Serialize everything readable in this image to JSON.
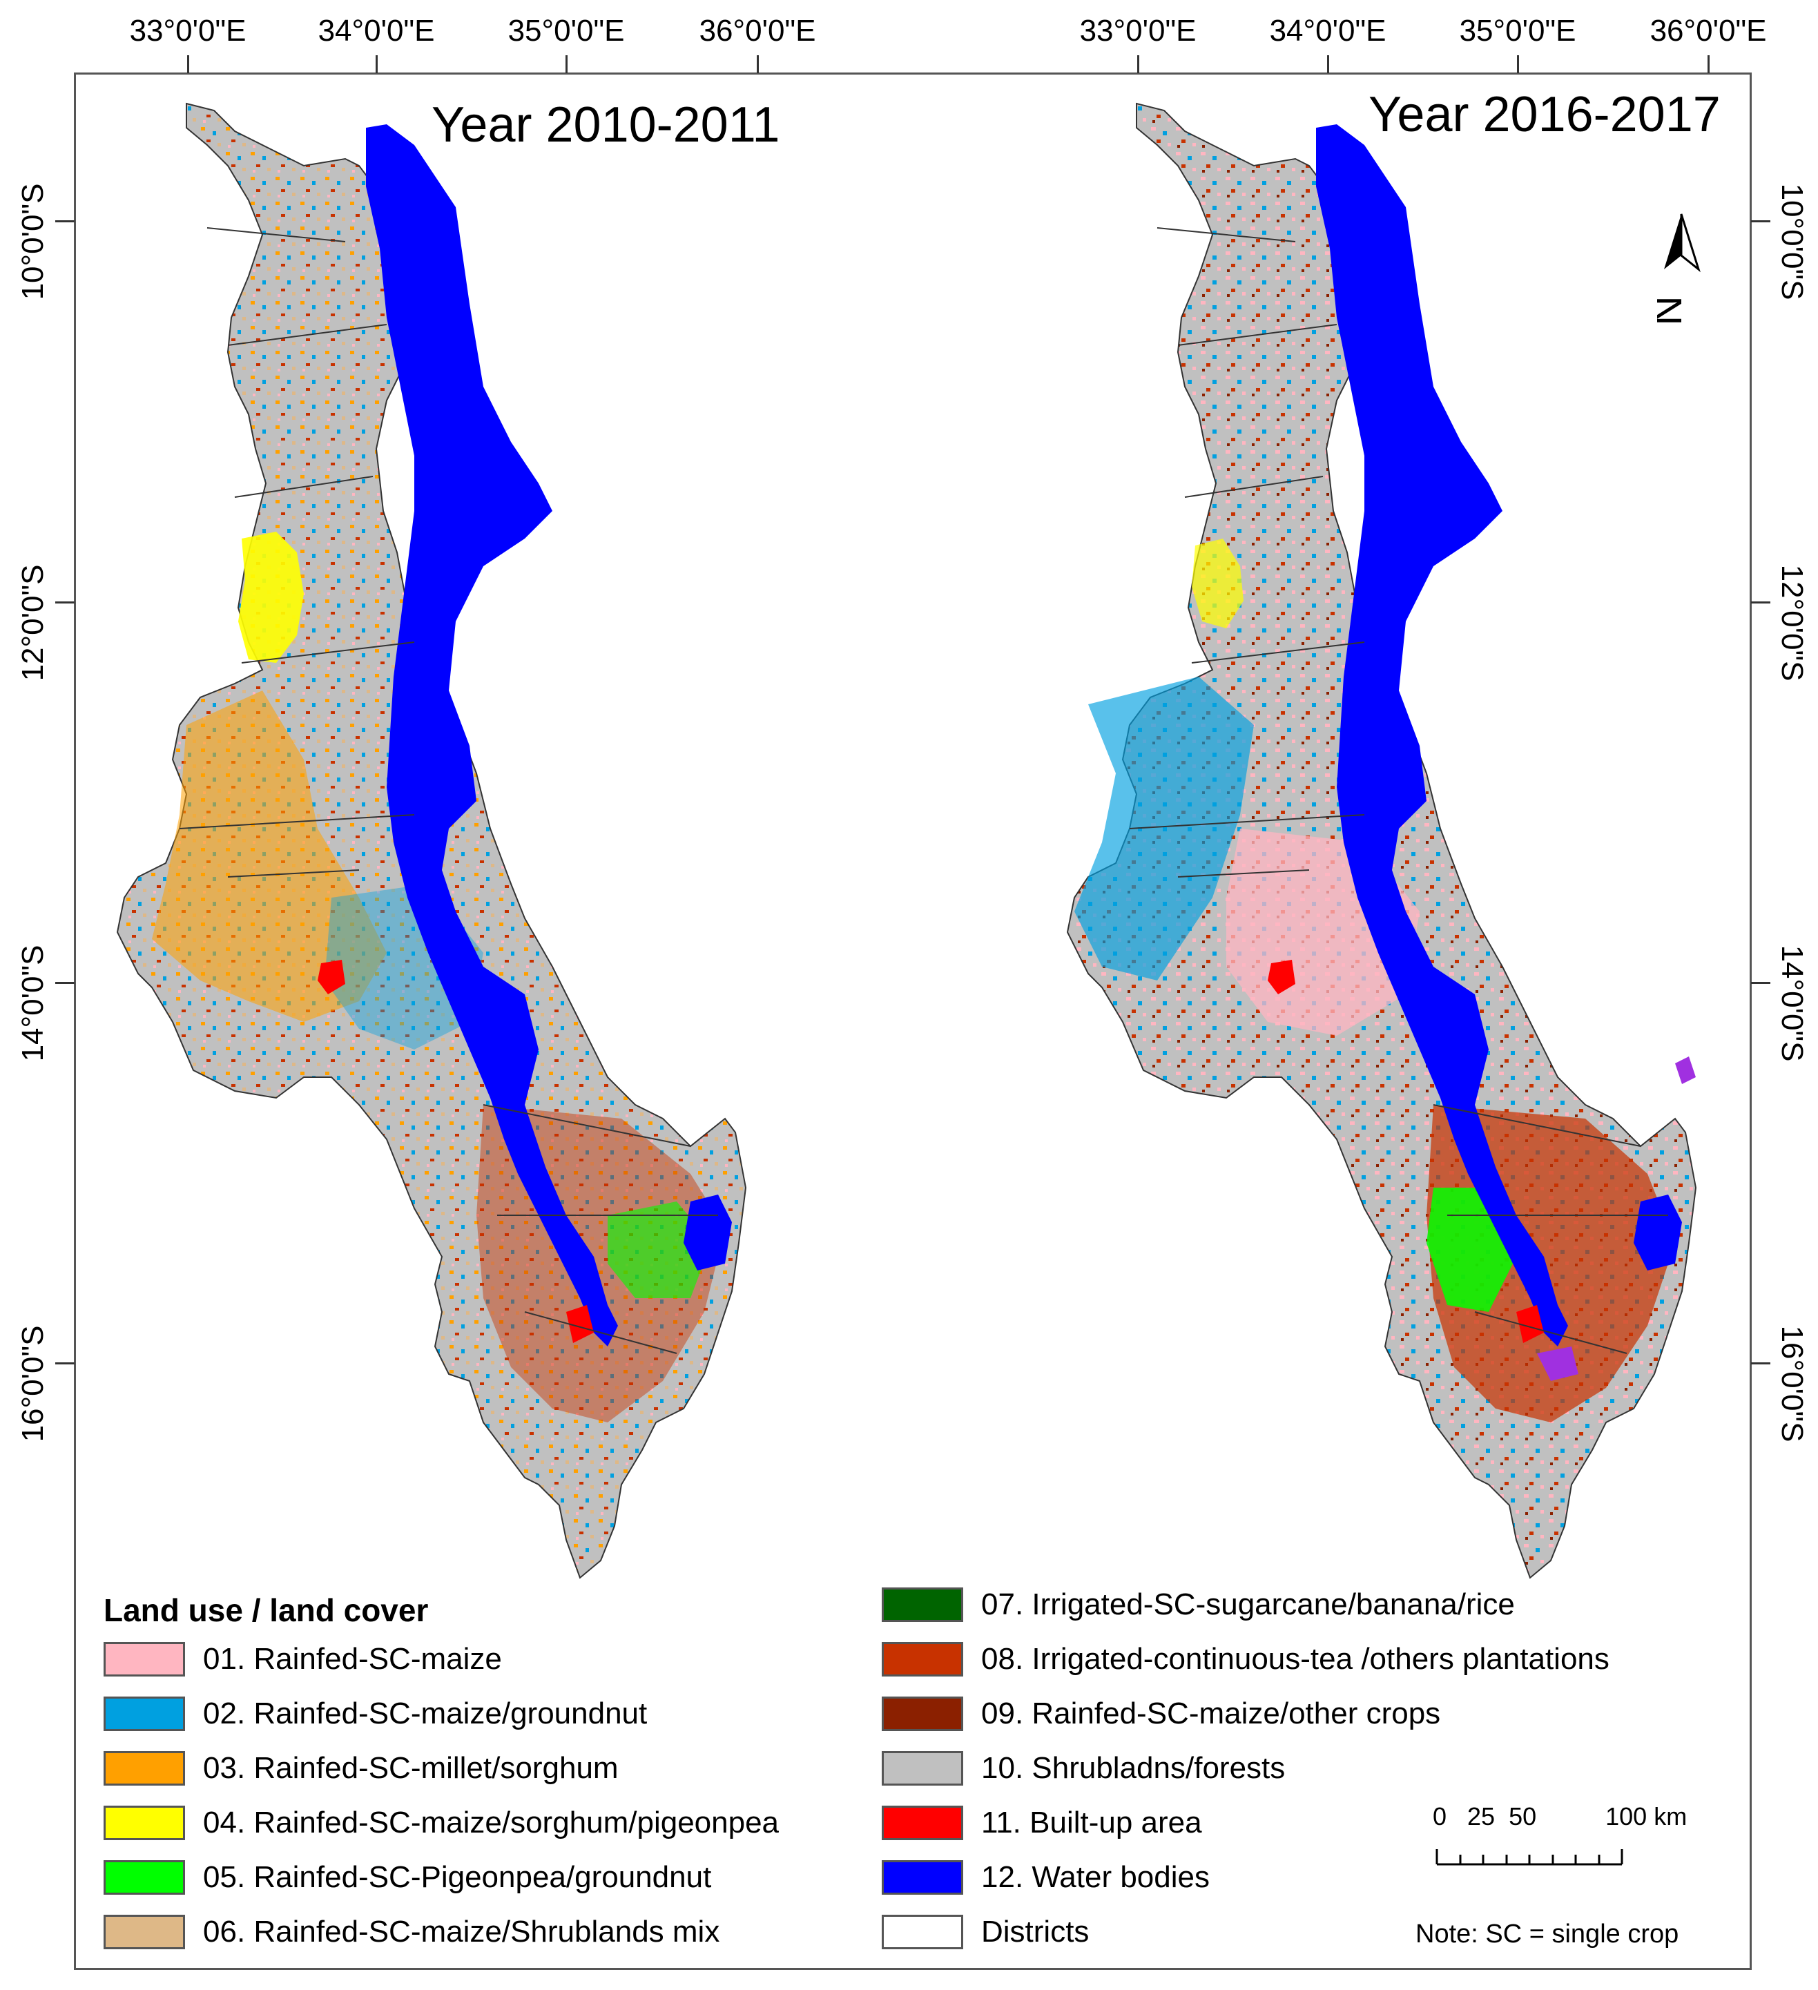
{
  "top_ticks": [
    {
      "label": "33°0'0\"E"
    },
    {
      "label": "34°0'0\"E"
    },
    {
      "label": "35°0'0\"E"
    },
    {
      "label": "36°0'0\"E"
    },
    {
      "label": "33°0'0\"E"
    },
    {
      "label": "34°0'0\"E"
    },
    {
      "label": "35°0'0\"E"
    },
    {
      "label": "36°0'0\"E"
    }
  ],
  "lat_ticks": [
    "10°0'0\"S",
    "12°0'0\"S",
    "14°0'0\"S",
    "16°0'0\"S"
  ],
  "panels": [
    {
      "title": "Year 2010-2011"
    },
    {
      "title": "Year 2016-2017"
    }
  ],
  "legend": {
    "title": "Land use / land cover",
    "items": [
      {
        "label": "01. Rainfed-SC-maize",
        "color": "#ffb6c1"
      },
      {
        "label": "02. Rainfed-SC-maize/groundnut",
        "color": "#00a0e0"
      },
      {
        "label": "03. Rainfed-SC-millet/sorghum",
        "color": "#ffa000"
      },
      {
        "label": "04. Rainfed-SC-maize/sorghum/pigeonpea",
        "color": "#ffff00"
      },
      {
        "label": "05. Rainfed-SC-Pigeonpea/groundnut",
        "color": "#00ff00"
      },
      {
        "label": "06. Rainfed-SC-maize/Shrublands mix",
        "color": "#deb887"
      },
      {
        "label": "07. Irrigated-SC-sugarcane/banana/rice",
        "color": "#006400"
      },
      {
        "label": "08. Irrigated-continuous-tea /others plantations",
        "color": "#c83200"
      },
      {
        "label": "09. Rainfed-SC-maize/other crops",
        "color": "#8b2000"
      },
      {
        "label": "10. Shrubladns/forests",
        "color": "#c0c0c0"
      },
      {
        "label": "11. Built-up area",
        "color": "#ff0000"
      },
      {
        "label": "12. Water bodies",
        "color": "#0000ff"
      },
      {
        "label": "Districts",
        "color": "#ffffff"
      }
    ]
  },
  "scale": {
    "labels": "0   25  50          100 km"
  },
  "note": "Note: SC = single crop"
}
